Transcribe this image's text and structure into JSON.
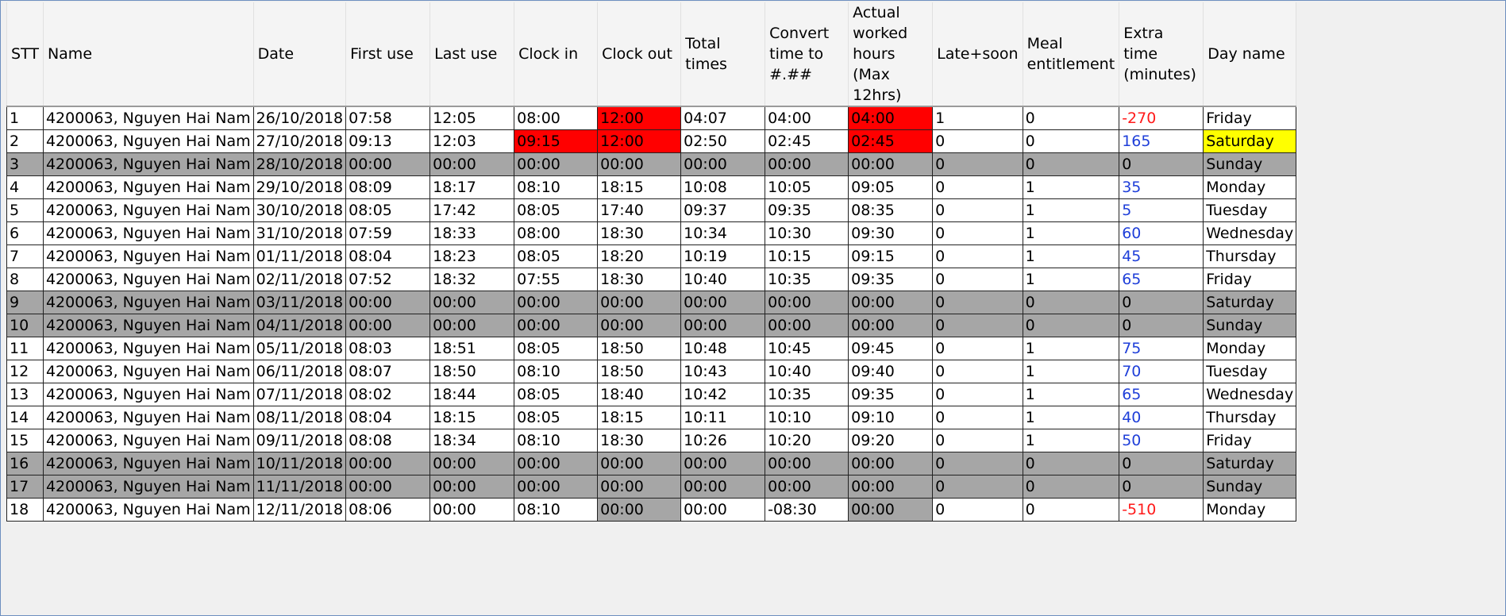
{
  "columns": [
    "STT",
    "Name",
    "Date",
    "First use",
    "Last use",
    "Clock in",
    "Clock out",
    "Total times",
    "Convert time to #.##",
    "Actual worked hours (Max 12hrs)",
    "Late+soon",
    "Meal entitlement",
    "Extra time (minutes)",
    "Day name"
  ],
  "colors": {
    "red_flag": "#ff0000",
    "inactive_gray": "#a6a6a6",
    "weekend_yellow": "#ffff00",
    "negative_text": "#ff1a1a",
    "positive_text": "#1f3fd9"
  },
  "rows": [
    {
      "cells": [
        "1",
        "4200063, Nguyen Hai Nam",
        "26/10/2018",
        "07:58",
        "12:05",
        "08:00",
        "12:00",
        "04:07",
        "04:00",
        "04:00",
        "1",
        "0",
        "-270",
        "Friday"
      ],
      "gray": false,
      "red": [
        6,
        9
      ],
      "gray_cells": [],
      "extra": "neg",
      "weekend": false
    },
    {
      "cells": [
        "2",
        "4200063, Nguyen Hai Nam",
        "27/10/2018",
        "09:13",
        "12:03",
        "09:15",
        "12:00",
        "02:50",
        "02:45",
        "02:45",
        "0",
        "0",
        "165",
        "Saturday"
      ],
      "gray": false,
      "red": [
        5,
        6,
        9
      ],
      "gray_cells": [],
      "extra": "pos",
      "weekend": true
    },
    {
      "cells": [
        "3",
        "4200063, Nguyen Hai Nam",
        "28/10/2018",
        "00:00",
        "00:00",
        "00:00",
        "00:00",
        "00:00",
        "00:00",
        "00:00",
        "0",
        "0",
        "0",
        "Sunday"
      ],
      "gray": true,
      "red": [],
      "gray_cells": [],
      "extra": "none",
      "weekend": true
    },
    {
      "cells": [
        "4",
        "4200063, Nguyen Hai Nam",
        "29/10/2018",
        "08:09",
        "18:17",
        "08:10",
        "18:15",
        "10:08",
        "10:05",
        "09:05",
        "0",
        "1",
        "35",
        "Monday"
      ],
      "gray": false,
      "red": [],
      "gray_cells": [],
      "extra": "pos",
      "weekend": false
    },
    {
      "cells": [
        "5",
        "4200063, Nguyen Hai Nam",
        "30/10/2018",
        "08:05",
        "17:42",
        "08:05",
        "17:40",
        "09:37",
        "09:35",
        "08:35",
        "0",
        "1",
        "5",
        "Tuesday"
      ],
      "gray": false,
      "red": [],
      "gray_cells": [],
      "extra": "pos",
      "weekend": false
    },
    {
      "cells": [
        "6",
        "4200063, Nguyen Hai Nam",
        "31/10/2018",
        "07:59",
        "18:33",
        "08:00",
        "18:30",
        "10:34",
        "10:30",
        "09:30",
        "0",
        "1",
        "60",
        "Wednesday"
      ],
      "gray": false,
      "red": [],
      "gray_cells": [],
      "extra": "pos",
      "weekend": false
    },
    {
      "cells": [
        "7",
        "4200063, Nguyen Hai Nam",
        "01/11/2018",
        "08:04",
        "18:23",
        "08:05",
        "18:20",
        "10:19",
        "10:15",
        "09:15",
        "0",
        "1",
        "45",
        "Thursday"
      ],
      "gray": false,
      "red": [],
      "gray_cells": [],
      "extra": "pos",
      "weekend": false
    },
    {
      "cells": [
        "8",
        "4200063, Nguyen Hai Nam",
        "02/11/2018",
        "07:52",
        "18:32",
        "07:55",
        "18:30",
        "10:40",
        "10:35",
        "09:35",
        "0",
        "1",
        "65",
        "Friday"
      ],
      "gray": false,
      "red": [],
      "gray_cells": [],
      "extra": "pos",
      "weekend": false
    },
    {
      "cells": [
        "9",
        "4200063, Nguyen Hai Nam",
        "03/11/2018",
        "00:00",
        "00:00",
        "00:00",
        "00:00",
        "00:00",
        "00:00",
        "00:00",
        "0",
        "0",
        "0",
        "Saturday"
      ],
      "gray": true,
      "red": [],
      "gray_cells": [],
      "extra": "none",
      "weekend": true
    },
    {
      "cells": [
        "10",
        "4200063, Nguyen Hai Nam",
        "04/11/2018",
        "00:00",
        "00:00",
        "00:00",
        "00:00",
        "00:00",
        "00:00",
        "00:00",
        "0",
        "0",
        "0",
        "Sunday"
      ],
      "gray": true,
      "red": [],
      "gray_cells": [],
      "extra": "none",
      "weekend": true
    },
    {
      "cells": [
        "11",
        "4200063, Nguyen Hai Nam",
        "05/11/2018",
        "08:03",
        "18:51",
        "08:05",
        "18:50",
        "10:48",
        "10:45",
        "09:45",
        "0",
        "1",
        "75",
        "Monday"
      ],
      "gray": false,
      "red": [],
      "gray_cells": [],
      "extra": "pos",
      "weekend": false
    },
    {
      "cells": [
        "12",
        "4200063, Nguyen Hai Nam",
        "06/11/2018",
        "08:07",
        "18:50",
        "08:10",
        "18:50",
        "10:43",
        "10:40",
        "09:40",
        "0",
        "1",
        "70",
        "Tuesday"
      ],
      "gray": false,
      "red": [],
      "gray_cells": [],
      "extra": "pos",
      "weekend": false
    },
    {
      "cells": [
        "13",
        "4200063, Nguyen Hai Nam",
        "07/11/2018",
        "08:02",
        "18:44",
        "08:05",
        "18:40",
        "10:42",
        "10:35",
        "09:35",
        "0",
        "1",
        "65",
        "Wednesday"
      ],
      "gray": false,
      "red": [],
      "gray_cells": [],
      "extra": "pos",
      "weekend": false
    },
    {
      "cells": [
        "14",
        "4200063, Nguyen Hai Nam",
        "08/11/2018",
        "08:04",
        "18:15",
        "08:05",
        "18:15",
        "10:11",
        "10:10",
        "09:10",
        "0",
        "1",
        "40",
        "Thursday"
      ],
      "gray": false,
      "red": [],
      "gray_cells": [],
      "extra": "pos",
      "weekend": false
    },
    {
      "cells": [
        "15",
        "4200063, Nguyen Hai Nam",
        "09/11/2018",
        "08:08",
        "18:34",
        "08:10",
        "18:30",
        "10:26",
        "10:20",
        "09:20",
        "0",
        "1",
        "50",
        "Friday"
      ],
      "gray": false,
      "red": [],
      "gray_cells": [],
      "extra": "pos",
      "weekend": false
    },
    {
      "cells": [
        "16",
        "4200063, Nguyen Hai Nam",
        "10/11/2018",
        "00:00",
        "00:00",
        "00:00",
        "00:00",
        "00:00",
        "00:00",
        "00:00",
        "0",
        "0",
        "0",
        "Saturday"
      ],
      "gray": true,
      "red": [],
      "gray_cells": [],
      "extra": "none",
      "weekend": true
    },
    {
      "cells": [
        "17",
        "4200063, Nguyen Hai Nam",
        "11/11/2018",
        "00:00",
        "00:00",
        "00:00",
        "00:00",
        "00:00",
        "00:00",
        "00:00",
        "0",
        "0",
        "0",
        "Sunday"
      ],
      "gray": true,
      "red": [],
      "gray_cells": [],
      "extra": "none",
      "weekend": true
    },
    {
      "cells": [
        "18",
        "4200063, Nguyen Hai Nam",
        "12/11/2018",
        "08:06",
        "00:00",
        "08:10",
        "00:00",
        "00:00",
        "-08:30",
        "00:00",
        "0",
        "0",
        "-510",
        "Monday"
      ],
      "gray": false,
      "red": [],
      "gray_cells": [
        6,
        9
      ],
      "extra": "neg",
      "weekend": false
    }
  ]
}
